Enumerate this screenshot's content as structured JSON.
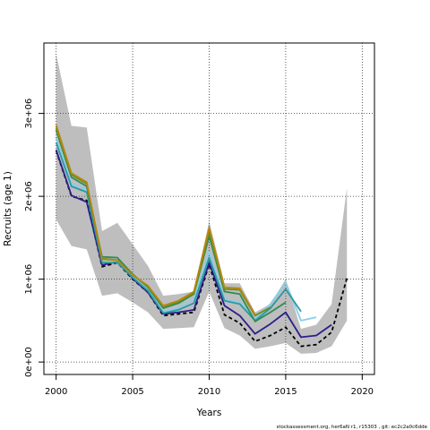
{
  "chart_data": {
    "type": "line",
    "xlabel": "Years",
    "ylabel": "Recruits (age 1)",
    "xlim": [
      1999.2,
      2020.8
    ],
    "ylim": [
      -150000,
      3850000
    ],
    "x_ticks": [
      2000,
      2005,
      2010,
      2015,
      2020
    ],
    "x_tick_labels": [
      "2000",
      "2005",
      "2010",
      "2015",
      "2020"
    ],
    "y_ticks": [
      0,
      1000000,
      2000000,
      3000000
    ],
    "y_tick_labels": [
      "0e+00",
      "1e+06",
      "2e+06",
      "3e+06"
    ],
    "grid": true,
    "footnote": "stockassessment.org, her6aN r1, r15303 , git: ec2c2a0c6dde",
    "band": {
      "x": [
        2000,
        2001,
        2002,
        2003,
        2004,
        2005,
        2006,
        2007,
        2008,
        2009,
        2010,
        2011,
        2012,
        2013,
        2014,
        2015,
        2016,
        2017,
        2018,
        2019
      ],
      "upper": [
        3720000,
        2850000,
        2830000,
        1580000,
        1680000,
        1420000,
        1160000,
        800000,
        820000,
        850000,
        1700000,
        950000,
        950000,
        600000,
        700000,
        1000000,
        400000,
        450000,
        700000,
        2100000
      ],
      "lower": [
        1720000,
        1400000,
        1360000,
        800000,
        830000,
        720000,
        600000,
        400000,
        410000,
        420000,
        850000,
        410000,
        320000,
        160000,
        190000,
        230000,
        100000,
        110000,
        190000,
        500000
      ],
      "color": "#bebebe"
    },
    "series": [
      {
        "color": "#000000",
        "dashed": true,
        "x": [
          2000,
          2001,
          2002,
          2003,
          2004,
          2005,
          2006,
          2007,
          2008,
          2009,
          2010,
          2011,
          2012,
          2013,
          2014,
          2015,
          2016,
          2017,
          2018,
          2019
        ],
        "values": [
          2550000,
          2000000,
          1950000,
          1150000,
          1200000,
          1000000,
          840000,
          560000,
          580000,
          600000,
          1180000,
          570000,
          470000,
          250000,
          320000,
          420000,
          190000,
          210000,
          360000,
          1010000
        ]
      },
      {
        "color": "#2b1e8c",
        "dashed": false,
        "x": [
          2000,
          2001,
          2002,
          2003,
          2004,
          2005,
          2006,
          2007,
          2008,
          2009,
          2010,
          2011,
          2012,
          2013,
          2014,
          2015,
          2016,
          2017,
          2018
        ],
        "values": [
          2560000,
          2010000,
          1930000,
          1170000,
          1210000,
          1010000,
          840000,
          580000,
          600000,
          630000,
          1200000,
          680000,
          560000,
          340000,
          460000,
          600000,
          300000,
          320000,
          450000
        ]
      },
      {
        "color": "#87ceeb",
        "dashed": false,
        "x": [
          2000,
          2001,
          2002,
          2003,
          2004,
          2005,
          2006,
          2007,
          2008,
          2009,
          2010,
          2011,
          2012,
          2013,
          2014,
          2015,
          2016,
          2017
        ],
        "values": [
          2700000,
          2150000,
          2080000,
          1230000,
          1220000,
          1040000,
          880000,
          610000,
          650000,
          760000,
          1330000,
          760000,
          720000,
          520000,
          700000,
          960000,
          500000,
          540000
        ]
      },
      {
        "color": "#2a9aa0",
        "dashed": false,
        "x": [
          2000,
          2001,
          2002,
          2003,
          2004,
          2005,
          2006,
          2007,
          2008,
          2009,
          2010,
          2011,
          2012,
          2013,
          2014,
          2015,
          2016
        ],
        "values": [
          2650000,
          2120000,
          2050000,
          1200000,
          1200000,
          1020000,
          860000,
          590000,
          630000,
          710000,
          1260000,
          740000,
          700000,
          500000,
          650000,
          880000,
          610000
        ]
      },
      {
        "color": "#2e8b57",
        "dashed": false,
        "x": [
          2000,
          2001,
          2002,
          2003,
          2004,
          2005,
          2006,
          2007,
          2008,
          2009,
          2010,
          2011,
          2012,
          2013,
          2014,
          2015
        ],
        "values": [
          2800000,
          2230000,
          2120000,
          1270000,
          1260000,
          1060000,
          900000,
          650000,
          710000,
          820000,
          1520000,
          850000,
          820000,
          490000,
          600000,
          720000
        ]
      },
      {
        "color": "#6b8e23",
        "dashed": false,
        "x": [
          2000,
          2001,
          2002,
          2003,
          2004,
          2005,
          2006,
          2007,
          2008,
          2009,
          2010,
          2011,
          2012,
          2013,
          2014
        ],
        "values": [
          2830000,
          2260000,
          2150000,
          1250000,
          1230000,
          1050000,
          910000,
          670000,
          730000,
          830000,
          1570000,
          880000,
          870000,
          560000,
          660000
        ]
      },
      {
        "color": "#b8860b",
        "dashed": false,
        "x": [
          2000,
          2001,
          2002,
          2003,
          2004,
          2005,
          2006,
          2007,
          2008,
          2009,
          2010,
          2011,
          2012,
          2013
        ],
        "values": [
          2860000,
          2280000,
          2170000,
          1240000,
          1230000,
          1050000,
          920000,
          680000,
          740000,
          850000,
          1620000,
          900000,
          890000,
          570000
        ]
      }
    ]
  }
}
